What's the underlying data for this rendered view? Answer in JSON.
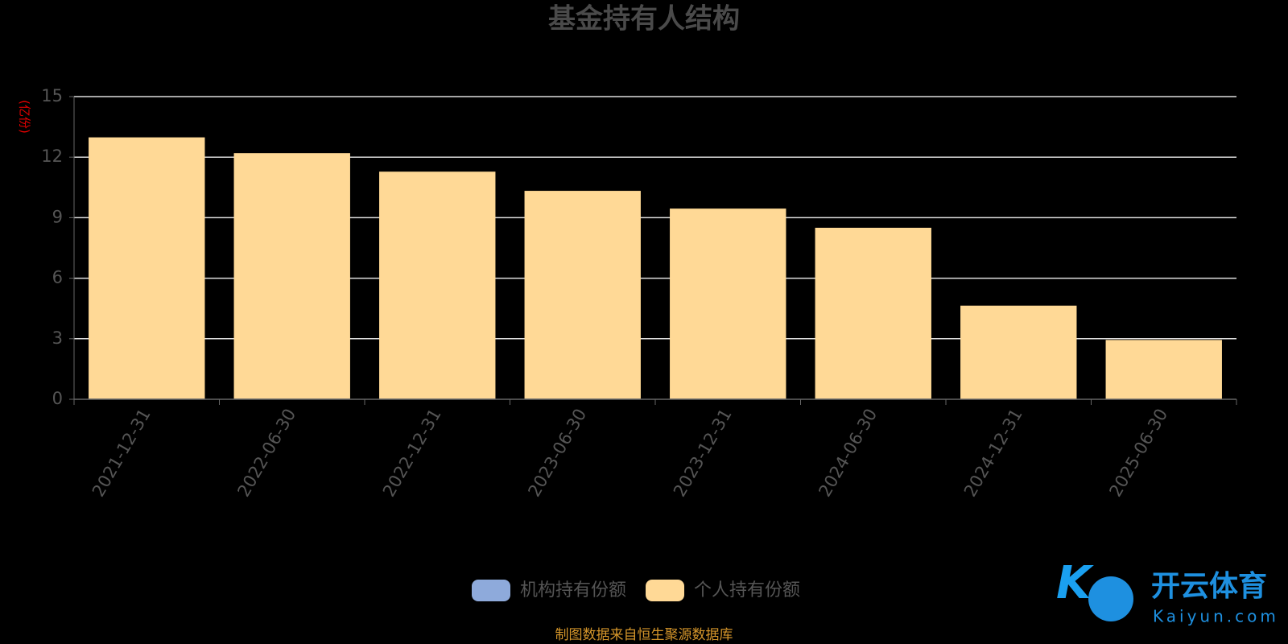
{
  "chart_data": {
    "type": "stacked_bar",
    "title": "基金持有人结构",
    "y_label": "(亿份)",
    "categories": [
      "2021-12-31",
      "2022-06-30",
      "2022-12-31",
      "2023-06-30",
      "2023-12-31",
      "2024-06-30",
      "2024-12-31",
      "2025-06-30"
    ],
    "series": [
      {
        "name": "机构持有份额",
        "color": "#8eaadb",
        "values": [
          0.03,
          0.03,
          0.03,
          0.03,
          0.03,
          0.03,
          0.02,
          0.02
        ]
      },
      {
        "name": "个人持有份额",
        "color": "#ffd996",
        "values": [
          12.95,
          12.17,
          11.25,
          10.3,
          9.42,
          8.47,
          4.62,
          2.92
        ]
      }
    ],
    "ylim": [
      0,
      15
    ],
    "yticks": [
      0,
      3,
      6,
      9,
      12,
      15
    ],
    "grid": true,
    "source": "制图数据来自恒生聚源数据库",
    "watermark": {
      "brand": "开云体育",
      "site": "Kaiyun.com"
    }
  }
}
